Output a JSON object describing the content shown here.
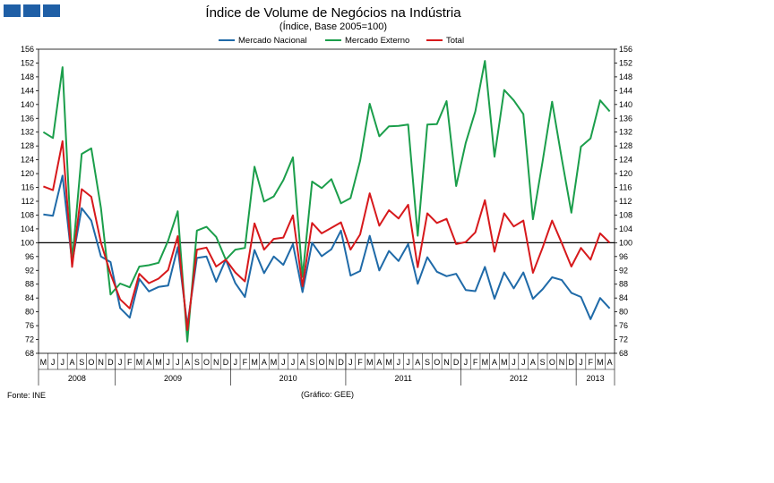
{
  "logo": {
    "name": "institution-logo",
    "colors": [
      "#1f5fa6",
      "#1f5fa6",
      "#1f5fa6"
    ]
  },
  "title": "Índice de Volume de Negócios na Indústria",
  "subtitle": "(Índice, Base 2005=100)",
  "source": "Fonte: INE",
  "credit": "(Gráfico: GEE)",
  "chart_data": {
    "type": "line",
    "title": "Índice de Volume de Negócios na Indústria",
    "subtitle": "(Índice, Base 2005=100)",
    "ylim": [
      68,
      156
    ],
    "yticks": [
      68,
      72,
      76,
      80,
      84,
      88,
      92,
      96,
      100,
      104,
      108,
      112,
      116,
      120,
      124,
      128,
      132,
      136,
      140,
      144,
      148,
      152,
      156
    ],
    "reference_line": 100,
    "grid": false,
    "legend_position": "top",
    "month_labels": [
      "M",
      "J",
      "J",
      "A",
      "S",
      "O",
      "N",
      "D",
      "J",
      "F",
      "M",
      "A",
      "M",
      "J",
      "J",
      "A",
      "S",
      "O",
      "N",
      "D",
      "J",
      "F",
      "M",
      "A",
      "M",
      "J",
      "J",
      "A",
      "S",
      "O",
      "N",
      "D",
      "J",
      "F",
      "M",
      "A",
      "M",
      "J",
      "J",
      "A",
      "S",
      "O",
      "N",
      "D",
      "J",
      "F",
      "M",
      "A",
      "M",
      "J",
      "J",
      "A",
      "S",
      "O",
      "N",
      "D",
      "J",
      "F",
      "M",
      "A"
    ],
    "years": [
      {
        "label": "2008",
        "start": 0,
        "end": 8
      },
      {
        "label": "2009",
        "start": 8,
        "end": 20
      },
      {
        "label": "2010",
        "start": 20,
        "end": 32
      },
      {
        "label": "2011",
        "start": 32,
        "end": 44
      },
      {
        "label": "2012",
        "start": 44,
        "end": 56
      },
      {
        "label": "2013",
        "start": 56,
        "end": 60
      }
    ],
    "series": [
      {
        "name": "Mercado Nacional",
        "color": "#1f6aa8",
        "values": [
          108.2,
          107.8,
          119.4,
          94.3,
          110.0,
          106.4,
          96.0,
          94.4,
          81.1,
          78.3,
          89.5,
          85.9,
          87.2,
          87.6,
          98.7,
          76.0,
          95.6,
          96.0,
          88.7,
          95.1,
          88.3,
          84.3,
          97.9,
          91.2,
          96.0,
          93.6,
          99.6,
          85.7,
          100.0,
          96.1,
          98.1,
          103.5,
          90.5,
          91.8,
          102.0,
          92.0,
          97.6,
          94.7,
          99.6,
          88.1,
          95.8,
          91.6,
          90.3,
          91.0,
          86.3,
          86.0,
          93.0,
          83.8,
          91.4,
          86.8,
          91.4,
          83.8,
          86.5,
          90.0,
          89.2,
          85.5,
          84.3,
          77.9,
          84.0,
          81.0
        ]
      },
      {
        "name": "Mercado Externo",
        "color": "#1b9e4b",
        "values": [
          132.0,
          130.3,
          150.8,
          94.5,
          125.7,
          127.3,
          110.0,
          85.0,
          88.2,
          87.1,
          93.1,
          93.5,
          94.2,
          100.6,
          109.1,
          71.4,
          103.5,
          104.6,
          101.7,
          95.1,
          98.0,
          98.5,
          122.0,
          111.9,
          113.4,
          118.1,
          124.7,
          90.1,
          117.7,
          115.8,
          118.4,
          111.4,
          112.9,
          123.7,
          140.2,
          130.8,
          133.7,
          133.8,
          134.2,
          102.0,
          134.2,
          134.3,
          141.0,
          116.4,
          128.9,
          138.0,
          152.6,
          124.9,
          144.2,
          141.2,
          137.2,
          106.8,
          123.4,
          140.8,
          124.3,
          108.7,
          127.8,
          130.2,
          141.2,
          138.0
        ]
      },
      {
        "name": "Total",
        "color": "#d7191c",
        "values": [
          116.3,
          115.2,
          129.4,
          93.0,
          115.5,
          113.3,
          100.0,
          91.0,
          83.6,
          81.0,
          91.0,
          88.3,
          89.6,
          92.1,
          101.9,
          74.7,
          98.0,
          98.6,
          93.1,
          95.1,
          91.4,
          88.8,
          105.6,
          98.0,
          101.1,
          101.5,
          107.9,
          87.4,
          105.7,
          102.7,
          104.3,
          105.9,
          98.0,
          102.4,
          114.3,
          104.9,
          109.4,
          107.0,
          111.0,
          92.9,
          108.5,
          105.7,
          106.9,
          99.6,
          100.2,
          103.0,
          112.3,
          97.4,
          108.5,
          104.7,
          106.4,
          91.3,
          98.5,
          106.4,
          99.9,
          93.1,
          98.5,
          95.1,
          102.7,
          100.0
        ]
      }
    ]
  }
}
